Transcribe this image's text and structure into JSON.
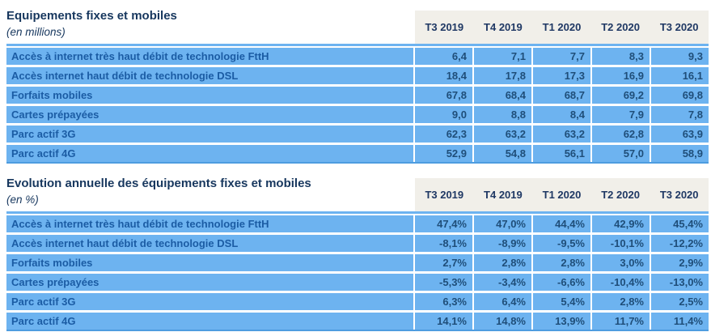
{
  "colors": {
    "row_background": "#6DB3F0",
    "header_background": "#F1EFE9",
    "title_text": "#17375E",
    "header_text": "#1F3864",
    "label_text": "#1B5CA4",
    "value_text": "#1F4E79"
  },
  "columns": [
    "T3 2019",
    "T4 2019",
    "T1 2020",
    "T2 2020",
    "T3 2020"
  ],
  "tables": [
    {
      "title": "Equipements fixes et mobiles",
      "subtitle": "(en millions)",
      "rows": [
        {
          "label": "Accès à internet très haut débit de technologie FttH",
          "values": [
            "6,4",
            "7,1",
            "7,7",
            "8,3",
            "9,3"
          ]
        },
        {
          "label": "Accès internet haut débit de technologie DSL",
          "values": [
            "18,4",
            "17,8",
            "17,3",
            "16,9",
            "16,1"
          ]
        },
        {
          "label": "Forfaits mobiles",
          "values": [
            "67,8",
            "68,4",
            "68,7",
            "69,2",
            "69,8"
          ]
        },
        {
          "label": "Cartes prépayées",
          "values": [
            "9,0",
            "8,8",
            "8,4",
            "7,9",
            "7,8"
          ]
        },
        {
          "label": "Parc actif 3G",
          "values": [
            "62,3",
            "63,2",
            "63,2",
            "62,8",
            "63,9"
          ]
        },
        {
          "label": "Parc actif 4G",
          "values": [
            "52,9",
            "54,8",
            "56,1",
            "57,0",
            "58,9"
          ]
        }
      ]
    },
    {
      "title": "Evolution annuelle des équipements fixes et mobiles",
      "subtitle": "(en %)",
      "rows": [
        {
          "label": "Accès à internet très haut débit de technologie FttH",
          "values": [
            "47,4%",
            "47,0%",
            "44,4%",
            "42,9%",
            "45,4%"
          ]
        },
        {
          "label": "Accès internet haut débit de technologie DSL",
          "values": [
            "-8,1%",
            "-8,9%",
            "-9,5%",
            "-10,1%",
            "-12,2%"
          ]
        },
        {
          "label": "Forfaits mobiles",
          "values": [
            "2,7%",
            "2,8%",
            "2,8%",
            "3,0%",
            "2,9%"
          ]
        },
        {
          "label": "Cartes prépayées",
          "values": [
            "-5,3%",
            "-3,4%",
            "-6,6%",
            "-10,4%",
            "-13,0%"
          ]
        },
        {
          "label": "Parc actif 3G",
          "values": [
            "6,3%",
            "6,4%",
            "5,4%",
            "2,8%",
            "2,5%"
          ]
        },
        {
          "label": "Parc actif 4G",
          "values": [
            "14,1%",
            "14,8%",
            "13,9%",
            "11,7%",
            "11,4%"
          ]
        }
      ]
    }
  ],
  "chart_data": [
    {
      "type": "table",
      "title": "Equipements fixes et mobiles (en millions)",
      "categories": [
        "T3 2019",
        "T4 2019",
        "T1 2020",
        "T2 2020",
        "T3 2020"
      ],
      "series": [
        {
          "name": "Accès à internet très haut débit de technologie FttH",
          "values": [
            6.4,
            7.1,
            7.7,
            8.3,
            9.3
          ]
        },
        {
          "name": "Accès internet haut débit de technologie DSL",
          "values": [
            18.4,
            17.8,
            17.3,
            16.9,
            16.1
          ]
        },
        {
          "name": "Forfaits mobiles",
          "values": [
            67.8,
            68.4,
            68.7,
            69.2,
            69.8
          ]
        },
        {
          "name": "Cartes prépayées",
          "values": [
            9.0,
            8.8,
            8.4,
            7.9,
            7.8
          ]
        },
        {
          "name": "Parc actif 3G",
          "values": [
            62.3,
            63.2,
            63.2,
            62.8,
            63.9
          ]
        },
        {
          "name": "Parc actif 4G",
          "values": [
            52.9,
            54.8,
            56.1,
            57.0,
            58.9
          ]
        }
      ]
    },
    {
      "type": "table",
      "title": "Evolution annuelle des équipements fixes et mobiles (en %)",
      "categories": [
        "T3 2019",
        "T4 2019",
        "T1 2020",
        "T2 2020",
        "T3 2020"
      ],
      "series": [
        {
          "name": "Accès à internet très haut débit de technologie FttH",
          "values": [
            47.4,
            47.0,
            44.4,
            42.9,
            45.4
          ]
        },
        {
          "name": "Accès internet haut débit de technologie DSL",
          "values": [
            -8.1,
            -8.9,
            -9.5,
            -10.1,
            -12.2
          ]
        },
        {
          "name": "Forfaits mobiles",
          "values": [
            2.7,
            2.8,
            2.8,
            3.0,
            2.9
          ]
        },
        {
          "name": "Cartes prépayées",
          "values": [
            -5.3,
            -3.4,
            -6.6,
            -10.4,
            -13.0
          ]
        },
        {
          "name": "Parc actif 3G",
          "values": [
            6.3,
            6.4,
            5.4,
            2.8,
            2.5
          ]
        },
        {
          "name": "Parc actif 4G",
          "values": [
            14.1,
            14.8,
            13.9,
            11.7,
            11.4
          ]
        }
      ]
    }
  ]
}
